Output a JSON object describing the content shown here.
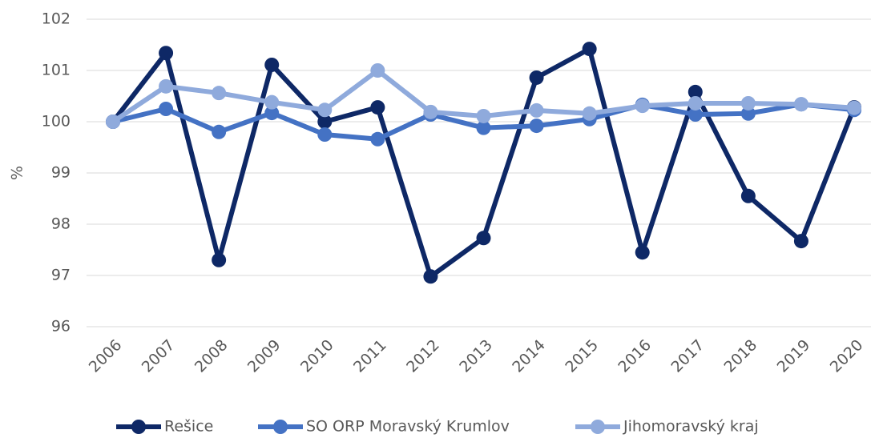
{
  "chart_data": {
    "type": "line",
    "categories": [
      "2006",
      "2007",
      "2008",
      "2009",
      "2010",
      "2011",
      "2012",
      "2013",
      "2014",
      "2015",
      "2016",
      "2017",
      "2018",
      "2019",
      "2020"
    ],
    "y_label": "%",
    "ylim": [
      96,
      102
    ],
    "yticks": [
      96,
      97,
      98,
      99,
      100,
      101,
      102
    ],
    "grid": true,
    "legend": "bottom",
    "series": [
      {
        "name": "Rešice",
        "color": "#0e2866",
        "values": [
          100,
          101.34,
          97.3,
          101.11,
          100,
          100.28,
          96.98,
          97.73,
          100.86,
          101.42,
          97.45,
          100.58,
          98.55,
          97.67,
          100.28
        ]
      },
      {
        "name": "SO ORP Moravský Krumlov",
        "color": "#4472c4",
        "values": [
          100,
          100.25,
          99.8,
          100.17,
          99.75,
          99.66,
          100.14,
          99.88,
          99.92,
          100.05,
          100.33,
          100.14,
          100.16,
          100.34,
          100.23
        ]
      },
      {
        "name": "Jihomoravský kraj",
        "color": "#8faadc",
        "values": [
          100,
          100.69,
          100.56,
          100.38,
          100.23,
          101.0,
          100.19,
          100.11,
          100.22,
          100.16,
          100.31,
          100.36,
          100.36,
          100.34,
          100.27
        ]
      }
    ]
  }
}
